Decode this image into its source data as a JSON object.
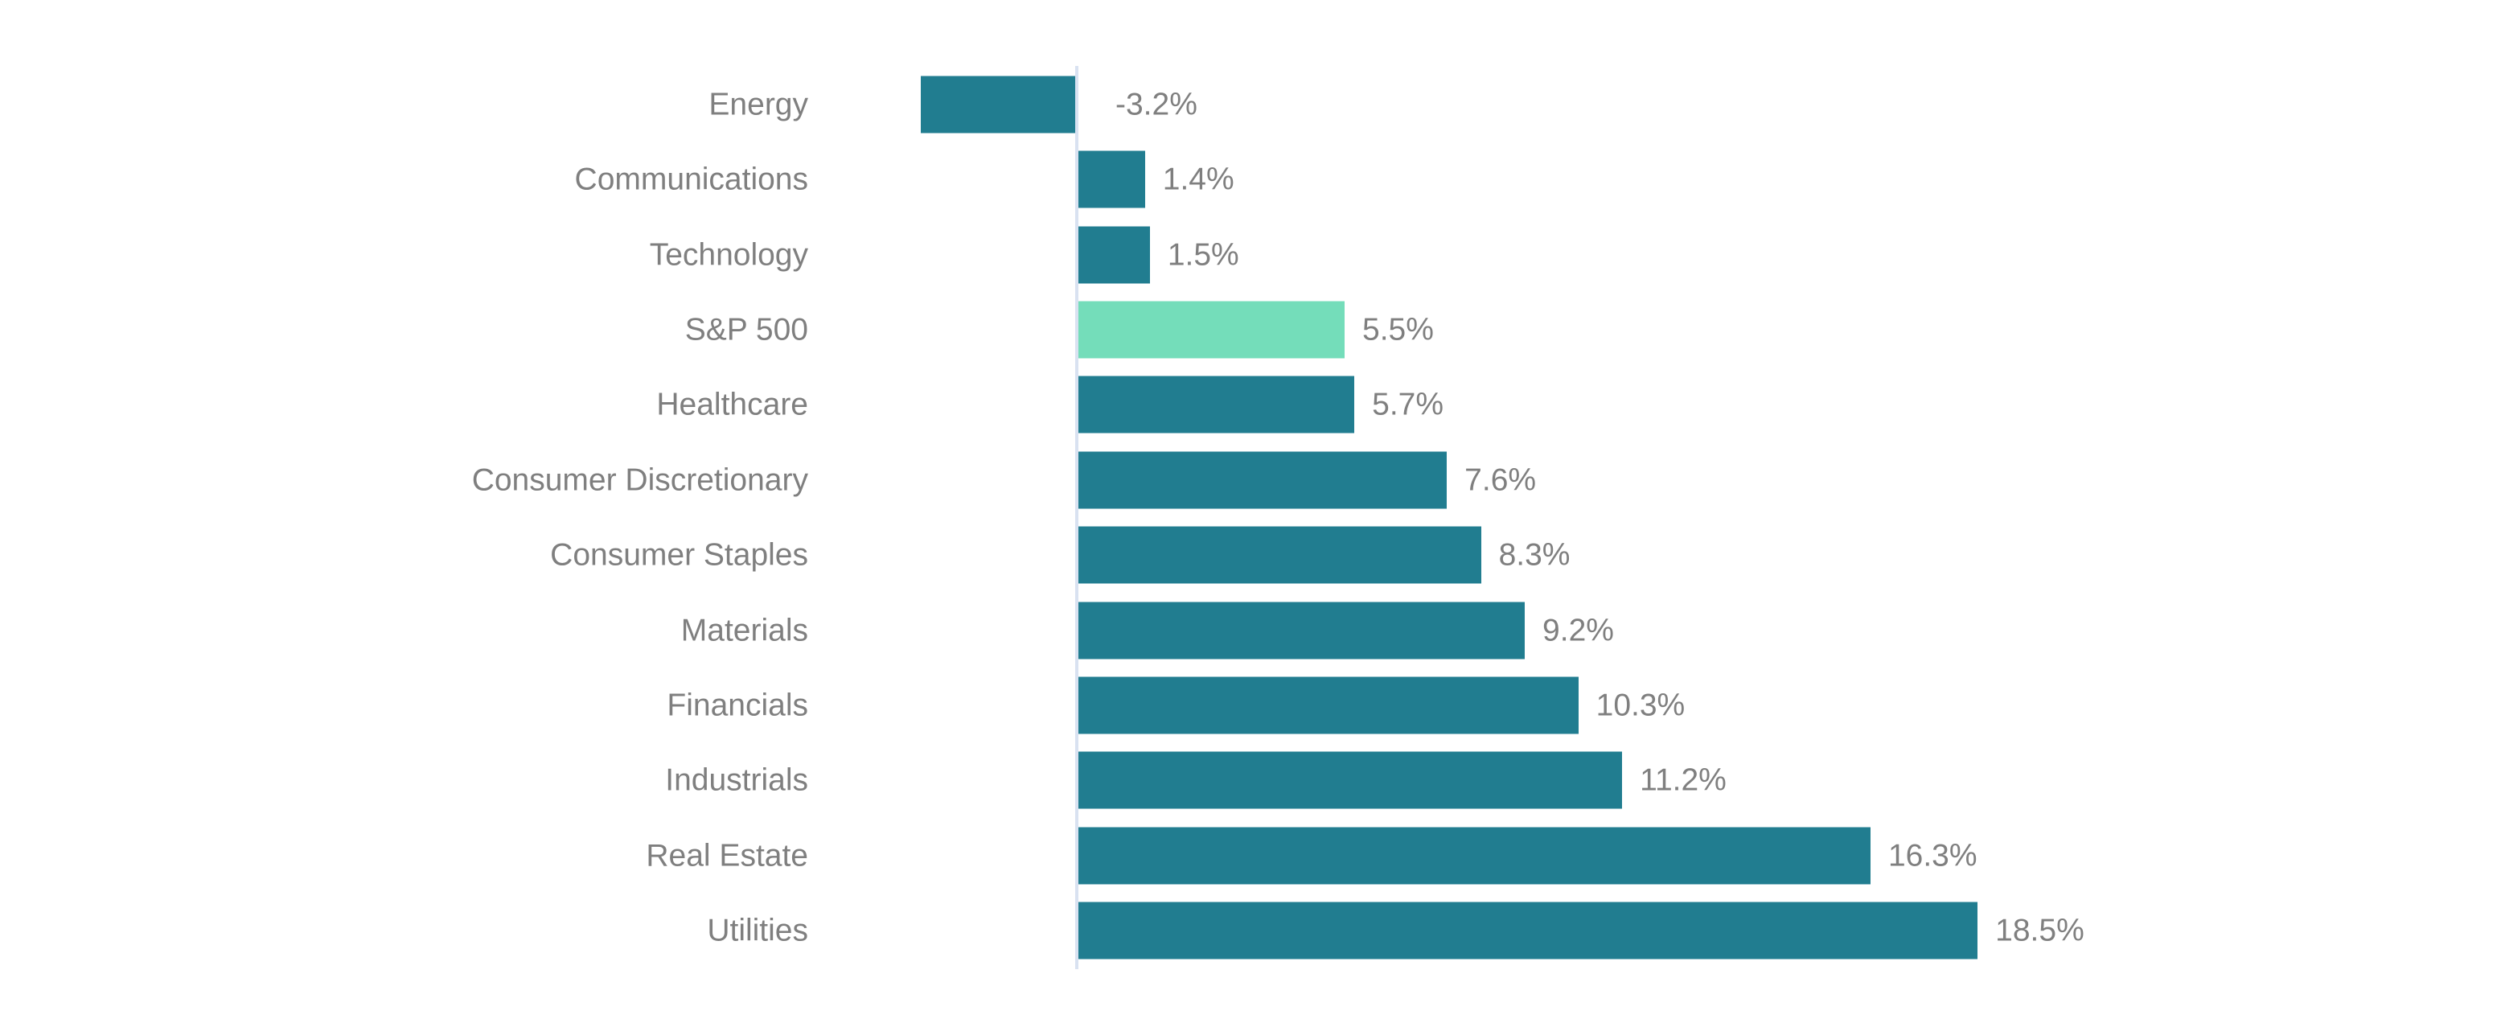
{
  "chart_data": {
    "type": "bar",
    "orientation": "horizontal",
    "title": "",
    "xlabel": "",
    "ylabel": "",
    "categories": [
      "Energy",
      "Communications",
      "Technology",
      "S&P 500",
      "Healthcare",
      "Consumer Discretionary",
      "Consumer Staples",
      "Materials",
      "Financials",
      "Industrials",
      "Real Estate",
      "Utilities"
    ],
    "values": [
      -3.2,
      1.4,
      1.5,
      5.5,
      5.7,
      7.6,
      8.3,
      9.2,
      10.3,
      11.2,
      16.3,
      18.5
    ],
    "value_labels": [
      "-3.2%",
      "1.4%",
      "1.5%",
      "5.5%",
      "5.7%",
      "7.6%",
      "8.3%",
      "9.2%",
      "10.3%",
      "11.2%",
      "16.3%",
      "18.5%"
    ],
    "highlight_category": "S&P 500",
    "xlim": [
      -5,
      20
    ],
    "grid": false,
    "legend": false,
    "colors": {
      "bar": "#217D90",
      "highlight_bar": "#74DDBA",
      "axis_line": "#D9E2F1",
      "category_text": "#7F7F7F",
      "value_text": "#7F7F7F"
    }
  }
}
